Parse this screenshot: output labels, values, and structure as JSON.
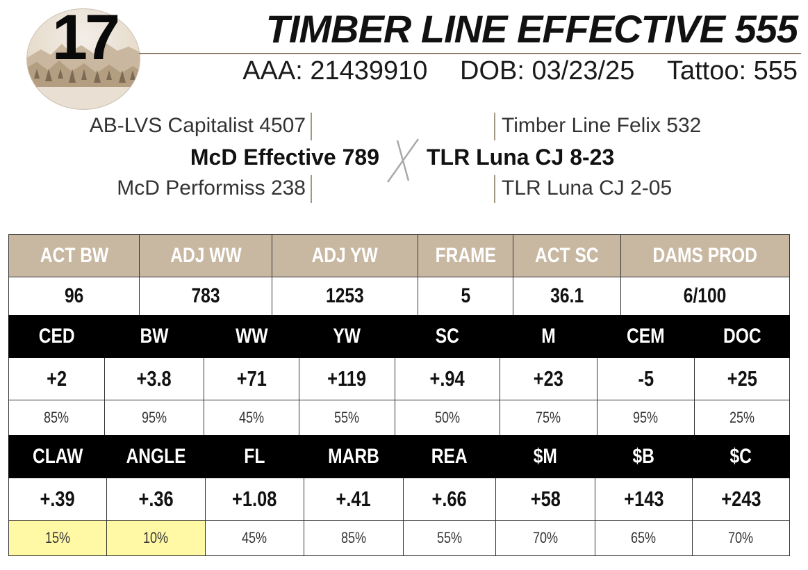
{
  "lot": {
    "number": "17"
  },
  "animal": {
    "name": "TIMBER LINE EFFECTIVE 555",
    "aaa": "AAA: 21439910",
    "dob": "DOB: 03/23/25",
    "tattoo": "Tattoo: 555"
  },
  "pedigree": {
    "sire_sire": "AB-LVS Capitalist 4507",
    "sire": "McD Effective 789",
    "sire_dam": "McD Performiss 238",
    "cross": "X",
    "dam_sire": "Timber Line Felix 532",
    "dam": "TLR Luna CJ 8-23",
    "dam_dam": "TLR Luna CJ 2-05"
  },
  "performance": {
    "headers": [
      "ACT BW",
      "ADJ WW",
      "ADJ YW",
      "FRAME",
      "ACT SC",
      "DAMS PROD"
    ],
    "values": [
      "96",
      "783",
      "1253",
      "5",
      "36.1",
      "6/100"
    ]
  },
  "epd1": {
    "headers": [
      "CED",
      "BW",
      "WW",
      "YW",
      "SC",
      "M",
      "CEM",
      "DOC"
    ],
    "values": [
      "+2",
      "+3.8",
      "+71",
      "+119",
      "+.94",
      "+23",
      "-5",
      "+25"
    ],
    "percentiles": [
      "85%",
      "95%",
      "45%",
      "55%",
      "50%",
      "75%",
      "95%",
      "25%"
    ]
  },
  "epd2": {
    "headers": [
      "CLAW",
      "ANGLE",
      "FL",
      "MARB",
      "REA",
      "$M",
      "$B",
      "$C"
    ],
    "values": [
      "+.39",
      "+.36",
      "+1.08",
      "+.41",
      "+.66",
      "+58",
      "+143",
      "+243"
    ],
    "percentiles": [
      "15%",
      "10%",
      "45%",
      "85%",
      "55%",
      "70%",
      "65%",
      "70%"
    ],
    "highlight_color": "#fff9a6"
  },
  "colors": {
    "tan_header": "#c8b8a2",
    "black_header": "#000000",
    "accent_rule": "#8f7e6a"
  }
}
